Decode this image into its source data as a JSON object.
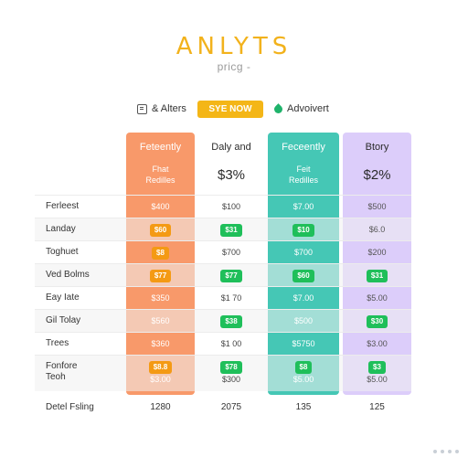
{
  "header": {
    "logo": "ANLYTS",
    "subtitle": "pricg -"
  },
  "toolbar": {
    "alerts_label": "& Alters",
    "button_label": "SYE NOW",
    "advert_label": "Advoivert"
  },
  "columns": [
    {
      "name": "Feteently",
      "sub1": "Fhat",
      "sub2": "Redilles",
      "price": ""
    },
    {
      "name": "Daly and",
      "sub1": "",
      "sub2": "",
      "price": "$3%"
    },
    {
      "name": "Feceently",
      "sub1": "Feit",
      "sub2": "Redilles",
      "price": ""
    },
    {
      "name": "Btory",
      "sub1": "",
      "sub2": "",
      "price": "$2%"
    }
  ],
  "rows": [
    {
      "label": "Ferleest",
      "cells": [
        "$400",
        "$100",
        "$7.00",
        "$500"
      ]
    },
    {
      "label": "Landay",
      "cells": [
        "$60",
        "$31",
        "$10",
        "$6.0"
      ]
    },
    {
      "label": "Toghuet",
      "cells": [
        "$8",
        "$700",
        "$700",
        "$200"
      ]
    },
    {
      "label": "Ved Bolms",
      "cells": [
        "$77",
        "$77",
        "$60",
        "$31"
      ]
    },
    {
      "label": "Eay Iate",
      "cells": [
        "$350",
        "$1 70",
        "$7.00",
        "$5.00"
      ]
    },
    {
      "label": "Gil Tolay",
      "cells": [
        "$560",
        "$38",
        "$500",
        "$30"
      ]
    },
    {
      "label": "Trees",
      "cells": [
        "$360",
        "$1 00",
        "$5750",
        "$3.00"
      ]
    },
    {
      "label": "Fonfore",
      "label2": "Teoh",
      "cells": [
        "$8.8",
        "$78",
        "$8",
        "$3"
      ],
      "cells2": [
        "$3.00",
        "$300",
        "$5.00",
        "$5.00"
      ]
    }
  ],
  "footer": {
    "label": "Detel Fsling",
    "values": [
      "1280",
      "2075",
      "135",
      "125"
    ]
  }
}
